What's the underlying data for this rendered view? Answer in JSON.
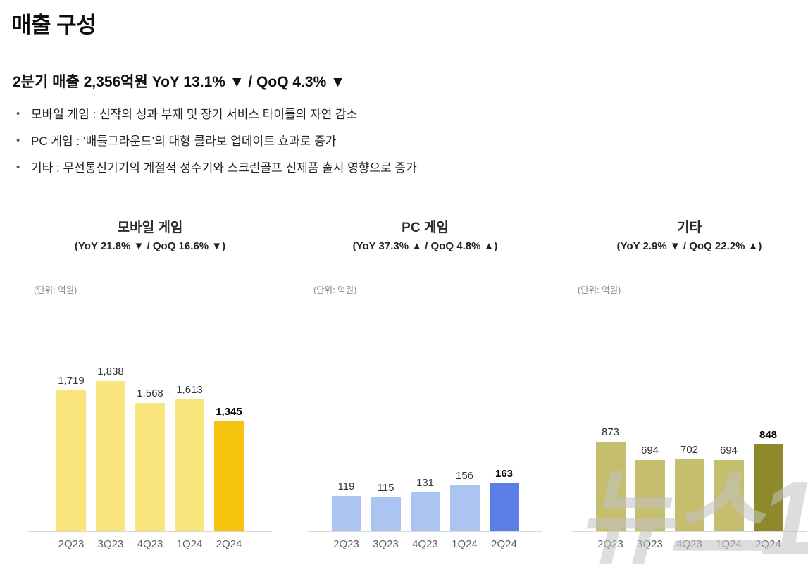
{
  "page": {
    "title": "매출 구성",
    "summary": "2분기 매출 2,356억원 YoY 13.1% ▼ / QoQ 4.3% ▼",
    "bullets": [
      "모바일 게임 : 신작의 성과 부재 및 장기 서비스 타이틀의 자연 감소",
      "PC 게임 : ‘배틀그라운드’의 대형 콜라보 업데이트 효과로 증가",
      "기타 : 무선통신기기의 계절적 성수기와 스크린골프 신제품 출시 영향으로 증가"
    ],
    "watermark": "뉴스1"
  },
  "chart_data": [
    {
      "type": "bar",
      "title": "모바일 게임",
      "subtitle": "(YoY 21.8% ▼ / QoQ 16.6% ▼)",
      "unit_label": "(단위: 억원)",
      "categories": [
        "2Q23",
        "3Q23",
        "4Q23",
        "1Q24",
        "2Q24"
      ],
      "values": [
        1719,
        1838,
        1568,
        1613,
        1345
      ],
      "value_labels": [
        "1,719",
        "1,838",
        "1,568",
        "1,613",
        "1,345"
      ],
      "bar_color": "#FAE57D",
      "highlight_color": "#F6C40E",
      "highlight_index": 4,
      "ylim": [
        0,
        2600
      ],
      "grid": false,
      "legend": false
    },
    {
      "type": "bar",
      "title": "PC 게임",
      "subtitle": "(YoY 37.3% ▲ / QoQ 4.8% ▲)",
      "unit_label": "(단위: 억원)",
      "categories": [
        "2Q23",
        "3Q23",
        "4Q23",
        "1Q24",
        "2Q24"
      ],
      "values": [
        119,
        115,
        131,
        156,
        163
      ],
      "value_labels": [
        "119",
        "115",
        "131",
        "156",
        "163"
      ],
      "bar_color": "#ABC4F2",
      "highlight_color": "#5A7FE8",
      "highlight_index": 4,
      "ylim": [
        0,
        720
      ],
      "grid": false,
      "legend": false
    },
    {
      "type": "bar",
      "title": "기타",
      "subtitle": "(YoY 2.9% ▼ / QoQ 22.2% ▲)",
      "unit_label": "(단위: 억원)",
      "categories": [
        "2Q23",
        "3Q23",
        "4Q23",
        "1Q24",
        "2Q24"
      ],
      "values": [
        873,
        694,
        702,
        694,
        848
      ],
      "value_labels": [
        "873",
        "694",
        "702",
        "694",
        "848"
      ],
      "bar_color": "#C6BE6F",
      "highlight_color": "#8E8A2B",
      "highlight_index": 4,
      "ylim": [
        0,
        2080
      ],
      "grid": false,
      "legend": false
    }
  ]
}
